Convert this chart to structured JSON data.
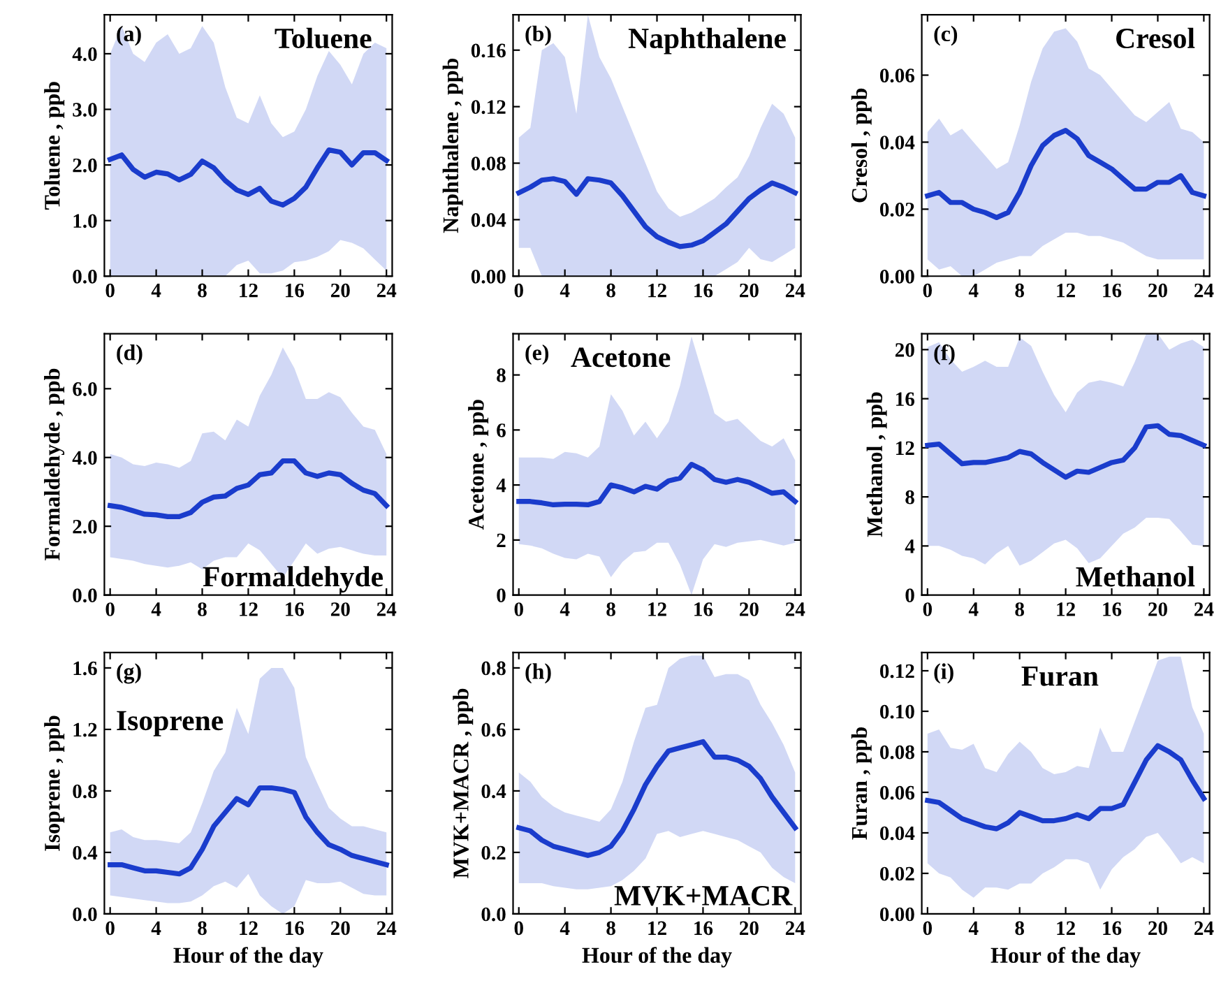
{
  "chart_data": [
    {
      "type": "line",
      "title": "Toluene",
      "annotations": [
        "(a)"
      ],
      "ylabel": "Toluene , ppb",
      "x": [
        0,
        1,
        2,
        3,
        4,
        5,
        6,
        7,
        8,
        9,
        10,
        11,
        12,
        13,
        14,
        15,
        16,
        17,
        18,
        19,
        20,
        21,
        22,
        23,
        24
      ],
      "xlim": [
        -0.5,
        24.5
      ],
      "xticks": [
        0,
        4,
        8,
        12,
        16,
        20,
        24
      ],
      "ylim": [
        0,
        4.7
      ],
      "yticks": [
        {
          "value": 0,
          "label": "0.0"
        },
        {
          "value": 1,
          "label": "1.0"
        },
        {
          "value": 2,
          "label": "2.0"
        },
        {
          "value": 3,
          "label": "3.0"
        },
        {
          "value": 4,
          "label": "4.0"
        }
      ],
      "series": [
        {
          "color": "#1a3ccc",
          "values": [
            2.1,
            2.18,
            1.92,
            1.78,
            1.87,
            1.84,
            1.73,
            1.83,
            2.07,
            1.95,
            1.72,
            1.55,
            1.47,
            1.58,
            1.35,
            1.28,
            1.4,
            1.6,
            1.95,
            2.27,
            2.23,
            2.0,
            2.22,
            2.22,
            2.08
          ],
          "upper": [
            4.0,
            4.5,
            4.0,
            3.85,
            4.2,
            4.35,
            4.0,
            4.1,
            4.5,
            4.2,
            3.4,
            2.85,
            2.75,
            3.25,
            2.75,
            2.5,
            2.6,
            3.0,
            3.6,
            4.05,
            3.8,
            3.45,
            4.0,
            4.2,
            4.1
          ],
          "lower": [
            0,
            0,
            0,
            0,
            0,
            0,
            0,
            0,
            0,
            0,
            0,
            0.2,
            0.28,
            0.05,
            0.05,
            0.1,
            0.25,
            0.28,
            0.35,
            0.45,
            0.65,
            0.6,
            0.5,
            0.3,
            0.1
          ]
        }
      ]
    },
    {
      "type": "line",
      "title": "Naphthalene",
      "annotations": [
        "(b)"
      ],
      "ylabel": "Naphthalene , ppb",
      "x": [
        0,
        1,
        2,
        3,
        4,
        5,
        6,
        7,
        8,
        9,
        10,
        11,
        12,
        13,
        14,
        15,
        16,
        17,
        18,
        19,
        20,
        21,
        22,
        23,
        24
      ],
      "xlim": [
        -0.5,
        24.5
      ],
      "xticks": [
        0,
        4,
        8,
        12,
        16,
        20,
        24
      ],
      "ylim": [
        0,
        0.185
      ],
      "yticks": [
        {
          "value": 0,
          "label": "0.00"
        },
        0.04,
        0.08,
        0.12,
        0.16
      ],
      "series": [
        {
          "color": "#1a3ccc",
          "values": [
            0.059,
            0.063,
            0.068,
            0.069,
            0.067,
            0.058,
            0.069,
            0.068,
            0.066,
            0.057,
            0.046,
            0.035,
            0.028,
            0.024,
            0.021,
            0.022,
            0.025,
            0.031,
            0.037,
            0.046,
            0.055,
            0.061,
            0.066,
            0.063,
            0.059
          ],
          "upper": [
            0.098,
            0.105,
            0.16,
            0.165,
            0.155,
            0.115,
            0.185,
            0.155,
            0.14,
            0.12,
            0.1,
            0.08,
            0.06,
            0.048,
            0.042,
            0.045,
            0.05,
            0.055,
            0.063,
            0.07,
            0.085,
            0.105,
            0.122,
            0.115,
            0.098
          ],
          "lower": [
            0.02,
            0.02,
            0,
            0,
            0,
            0,
            0,
            0,
            0,
            0,
            0,
            0,
            0,
            0,
            0,
            0,
            0,
            0,
            0.005,
            0.01,
            0.02,
            0.012,
            0.01,
            0.015,
            0.02
          ]
        }
      ]
    },
    {
      "type": "line",
      "title": "Cresol",
      "annotations": [
        "(c)"
      ],
      "ylabel": "Cresol , ppb",
      "x": [
        0,
        1,
        2,
        3,
        4,
        5,
        6,
        7,
        8,
        9,
        10,
        11,
        12,
        13,
        14,
        15,
        16,
        17,
        18,
        19,
        20,
        21,
        22,
        23,
        24
      ],
      "xlim": [
        -0.5,
        24.5
      ],
      "xticks": [
        0,
        4,
        8,
        12,
        16,
        20,
        24
      ],
      "ylim": [
        0,
        0.078
      ],
      "yticks": [
        {
          "value": 0,
          "label": "0.00"
        },
        0.02,
        0.04,
        0.06
      ],
      "series": [
        {
          "color": "#1a3ccc",
          "values": [
            0.024,
            0.025,
            0.022,
            0.022,
            0.02,
            0.019,
            0.0175,
            0.019,
            0.025,
            0.033,
            0.039,
            0.042,
            0.0435,
            0.041,
            0.036,
            0.034,
            0.032,
            0.029,
            0.026,
            0.026,
            0.028,
            0.028,
            0.03,
            0.025,
            0.024
          ],
          "upper": [
            0.043,
            0.047,
            0.042,
            0.044,
            0.04,
            0.036,
            0.032,
            0.034,
            0.045,
            0.058,
            0.068,
            0.073,
            0.074,
            0.07,
            0.062,
            0.06,
            0.056,
            0.052,
            0.048,
            0.046,
            0.049,
            0.052,
            0.044,
            0.043,
            0.04
          ],
          "lower": [
            0.005,
            0.002,
            0.003,
            0,
            0,
            0.002,
            0.004,
            0.005,
            0.006,
            0.006,
            0.009,
            0.011,
            0.013,
            0.013,
            0.012,
            0.012,
            0.011,
            0.01,
            0.008,
            0.006,
            0.005,
            0.005,
            0.005,
            0.005,
            0.005
          ]
        }
      ]
    },
    {
      "type": "line",
      "title": "Formaldehyde",
      "annotations": [
        "(d)"
      ],
      "ylabel": "Formaldehyde , ppb",
      "x": [
        0,
        1,
        2,
        3,
        4,
        5,
        6,
        7,
        8,
        9,
        10,
        11,
        12,
        13,
        14,
        15,
        16,
        17,
        18,
        19,
        20,
        21,
        22,
        23,
        24
      ],
      "xlim": [
        -0.5,
        24.5
      ],
      "xticks": [
        0,
        4,
        8,
        12,
        16,
        20,
        24
      ],
      "ylim": [
        0,
        7.6
      ],
      "yticks": [
        {
          "value": 0,
          "label": "0.0"
        },
        {
          "value": 2,
          "label": "2.0"
        },
        {
          "value": 4,
          "label": "4.0"
        },
        {
          "value": 6,
          "label": "6.0"
        }
      ],
      "series": [
        {
          "color": "#1a3ccc",
          "values": [
            2.6,
            2.55,
            2.45,
            2.35,
            2.33,
            2.28,
            2.28,
            2.4,
            2.7,
            2.85,
            2.88,
            3.1,
            3.2,
            3.5,
            3.55,
            3.9,
            3.9,
            3.55,
            3.45,
            3.55,
            3.5,
            3.25,
            3.05,
            2.95,
            2.6
          ],
          "upper": [
            4.1,
            4.0,
            3.8,
            3.75,
            3.85,
            3.8,
            3.7,
            3.9,
            4.7,
            4.75,
            4.5,
            5.1,
            4.9,
            5.8,
            6.4,
            7.2,
            6.6,
            5.7,
            5.7,
            5.9,
            5.75,
            5.3,
            4.9,
            4.8,
            4.1
          ],
          "lower": [
            1.1,
            1.05,
            1.0,
            0.9,
            0.85,
            0.8,
            0.85,
            0.95,
            0.75,
            1.0,
            1.1,
            1.1,
            1.5,
            1.3,
            0.9,
            0.5,
            1.0,
            1.5,
            1.2,
            1.35,
            1.4,
            1.3,
            1.2,
            1.15,
            1.15
          ]
        }
      ]
    },
    {
      "type": "line",
      "title": "Acetone",
      "annotations": [
        "(e)"
      ],
      "ylabel": "Acetone , ppb",
      "x": [
        0,
        1,
        2,
        3,
        4,
        5,
        6,
        7,
        8,
        9,
        10,
        11,
        12,
        13,
        14,
        15,
        16,
        17,
        18,
        19,
        20,
        21,
        22,
        23,
        24
      ],
      "xlim": [
        -0.5,
        24.5
      ],
      "xticks": [
        0,
        4,
        8,
        12,
        16,
        20,
        24
      ],
      "ylim": [
        0,
        9.5
      ],
      "yticks": [
        0,
        2,
        4,
        6,
        8
      ],
      "series": [
        {
          "color": "#1a3ccc",
          "values": [
            3.4,
            3.4,
            3.35,
            3.28,
            3.3,
            3.3,
            3.28,
            3.4,
            4.0,
            3.9,
            3.75,
            3.95,
            3.85,
            4.15,
            4.25,
            4.75,
            4.55,
            4.2,
            4.1,
            4.2,
            4.1,
            3.9,
            3.7,
            3.75,
            3.4
          ],
          "upper": [
            5.0,
            5.0,
            5.0,
            4.95,
            5.2,
            5.15,
            5.0,
            5.4,
            7.3,
            6.7,
            5.8,
            6.3,
            5.7,
            6.3,
            7.6,
            9.4,
            8.0,
            6.6,
            6.3,
            6.4,
            6.0,
            5.6,
            5.4,
            5.7,
            4.9
          ],
          "lower": [
            1.85,
            1.8,
            1.7,
            1.5,
            1.35,
            1.3,
            1.5,
            1.4,
            0.65,
            1.2,
            1.55,
            1.6,
            1.9,
            1.9,
            1.1,
            0.0,
            1.3,
            1.85,
            1.75,
            1.9,
            1.95,
            2.0,
            1.9,
            1.8,
            1.9
          ]
        }
      ]
    },
    {
      "type": "line",
      "title": "Methanol",
      "annotations": [
        "(f)"
      ],
      "ylabel": "Methanol , ppb",
      "x": [
        0,
        1,
        2,
        3,
        4,
        5,
        6,
        7,
        8,
        9,
        10,
        11,
        12,
        13,
        14,
        15,
        16,
        17,
        18,
        19,
        20,
        21,
        22,
        23,
        24
      ],
      "xlim": [
        -0.5,
        24.5
      ],
      "xticks": [
        0,
        4,
        8,
        12,
        16,
        20,
        24
      ],
      "ylim": [
        0,
        21.3
      ],
      "yticks": [
        0,
        4,
        8,
        12,
        16,
        20
      ],
      "series": [
        {
          "color": "#1a3ccc",
          "values": [
            12.2,
            12.3,
            11.5,
            10.7,
            10.8,
            10.8,
            11.0,
            11.2,
            11.7,
            11.5,
            10.8,
            10.2,
            9.6,
            10.1,
            10.0,
            10.4,
            10.8,
            11.0,
            12.0,
            13.7,
            13.8,
            13.1,
            13.0,
            12.6,
            12.2
          ],
          "upper": [
            20.2,
            20.6,
            19.2,
            18.2,
            18.6,
            19.1,
            18.6,
            18.6,
            21.0,
            20.3,
            18.2,
            16.3,
            14.9,
            16.5,
            17.3,
            17.5,
            17.3,
            17.0,
            19.0,
            21.3,
            21.3,
            20.0,
            20.5,
            20.8,
            20.2
          ],
          "lower": [
            4.0,
            4.0,
            3.7,
            3.2,
            3.0,
            2.5,
            3.4,
            4.0,
            2.4,
            2.8,
            3.5,
            4.2,
            4.5,
            3.8,
            2.6,
            3.0,
            4.0,
            5.0,
            5.5,
            6.3,
            6.3,
            6.2,
            5.2,
            4.1,
            4.0
          ]
        }
      ]
    },
    {
      "type": "line",
      "title": "Isoprene",
      "annotations": [
        "(g)"
      ],
      "ylabel": "Isoprene , ppb",
      "xlabel": "Hour of the day",
      "x": [
        0,
        1,
        2,
        3,
        4,
        5,
        6,
        7,
        8,
        9,
        10,
        11,
        12,
        13,
        14,
        15,
        16,
        17,
        18,
        19,
        20,
        21,
        22,
        23,
        24
      ],
      "xlim": [
        -0.5,
        24.5
      ],
      "xticks": [
        0,
        4,
        8,
        12,
        16,
        20,
        24
      ],
      "ylim": [
        0,
        1.7
      ],
      "yticks": [
        {
          "value": 0,
          "label": "0.0"
        },
        0.4,
        0.8,
        1.2,
        1.6
      ],
      "series": [
        {
          "color": "#1a3ccc",
          "values": [
            0.32,
            0.32,
            0.3,
            0.28,
            0.28,
            0.27,
            0.26,
            0.3,
            0.42,
            0.57,
            0.66,
            0.75,
            0.71,
            0.82,
            0.82,
            0.81,
            0.79,
            0.63,
            0.53,
            0.45,
            0.42,
            0.38,
            0.36,
            0.34,
            0.32
          ],
          "upper": [
            0.53,
            0.55,
            0.5,
            0.48,
            0.48,
            0.47,
            0.46,
            0.53,
            0.72,
            0.93,
            1.05,
            1.34,
            1.17,
            1.53,
            1.6,
            1.6,
            1.47,
            1.02,
            0.85,
            0.69,
            0.62,
            0.57,
            0.57,
            0.55,
            0.53
          ],
          "lower": [
            0.12,
            0.11,
            0.1,
            0.09,
            0.08,
            0.07,
            0.07,
            0.08,
            0.12,
            0.18,
            0.21,
            0.17,
            0.26,
            0.12,
            0.05,
            0.0,
            0.05,
            0.22,
            0.2,
            0.2,
            0.21,
            0.17,
            0.13,
            0.12,
            0.12
          ]
        }
      ]
    },
    {
      "type": "line",
      "title": "MVK+MACR",
      "annotations": [
        "(h)"
      ],
      "ylabel": "MVK+MACR , ppb",
      "xlabel": "Hour of the day",
      "x": [
        0,
        1,
        2,
        3,
        4,
        5,
        6,
        7,
        8,
        9,
        10,
        11,
        12,
        13,
        14,
        15,
        16,
        17,
        18,
        19,
        20,
        21,
        22,
        23,
        24
      ],
      "xlim": [
        -0.5,
        24.5
      ],
      "xticks": [
        0,
        4,
        8,
        12,
        16,
        20,
        24
      ],
      "ylim": [
        0,
        0.85
      ],
      "yticks": [
        {
          "value": 0,
          "label": "0.0"
        },
        0.2,
        0.4,
        0.6,
        0.8
      ],
      "series": [
        {
          "color": "#1a3ccc",
          "values": [
            0.28,
            0.27,
            0.24,
            0.22,
            0.21,
            0.2,
            0.19,
            0.2,
            0.22,
            0.27,
            0.34,
            0.42,
            0.48,
            0.53,
            0.54,
            0.55,
            0.56,
            0.51,
            0.51,
            0.5,
            0.48,
            0.44,
            0.38,
            0.33,
            0.28
          ],
          "upper": [
            0.46,
            0.43,
            0.38,
            0.35,
            0.33,
            0.32,
            0.31,
            0.3,
            0.34,
            0.43,
            0.56,
            0.67,
            0.68,
            0.8,
            0.83,
            0.84,
            0.84,
            0.77,
            0.78,
            0.78,
            0.76,
            0.68,
            0.62,
            0.55,
            0.46
          ],
          "lower": [
            0.1,
            0.1,
            0.1,
            0.09,
            0.085,
            0.08,
            0.08,
            0.085,
            0.09,
            0.11,
            0.14,
            0.18,
            0.26,
            0.27,
            0.25,
            0.26,
            0.27,
            0.26,
            0.25,
            0.24,
            0.22,
            0.2,
            0.15,
            0.12,
            0.1
          ]
        }
      ]
    },
    {
      "type": "line",
      "title": "Furan",
      "annotations": [
        "(i)"
      ],
      "ylabel": "Furan , ppb",
      "xlabel": "Hour of the day",
      "x": [
        0,
        1,
        2,
        3,
        4,
        5,
        6,
        7,
        8,
        9,
        10,
        11,
        12,
        13,
        14,
        15,
        16,
        17,
        18,
        19,
        20,
        21,
        22,
        23,
        24
      ],
      "xlim": [
        -0.5,
        24.5
      ],
      "xticks": [
        0,
        4,
        8,
        12,
        16,
        20,
        24
      ],
      "ylim": [
        0,
        0.129
      ],
      "yticks": [
        {
          "value": 0,
          "label": "0.00"
        },
        0.02,
        0.04,
        0.06,
        0.08,
        {
          "value": 0.1,
          "label": "0.10"
        },
        0.12
      ],
      "series": [
        {
          "color": "#1a3ccc",
          "values": [
            0.056,
            0.055,
            0.051,
            0.047,
            0.045,
            0.043,
            0.042,
            0.045,
            0.05,
            0.048,
            0.046,
            0.046,
            0.047,
            0.049,
            0.047,
            0.052,
            0.052,
            0.054,
            0.065,
            0.076,
            0.083,
            0.08,
            0.076,
            0.066,
            0.057
          ],
          "upper": [
            0.089,
            0.091,
            0.082,
            0.081,
            0.084,
            0.072,
            0.07,
            0.079,
            0.085,
            0.08,
            0.072,
            0.069,
            0.07,
            0.073,
            0.072,
            0.092,
            0.08,
            0.08,
            0.095,
            0.11,
            0.125,
            0.127,
            0.127,
            0.102,
            0.089
          ],
          "lower": [
            0.025,
            0.02,
            0.018,
            0.012,
            0.008,
            0.013,
            0.013,
            0.012,
            0.015,
            0.015,
            0.02,
            0.023,
            0.027,
            0.027,
            0.025,
            0.012,
            0.022,
            0.028,
            0.032,
            0.038,
            0.04,
            0.033,
            0.025,
            0.028,
            0.025
          ]
        }
      ]
    }
  ]
}
